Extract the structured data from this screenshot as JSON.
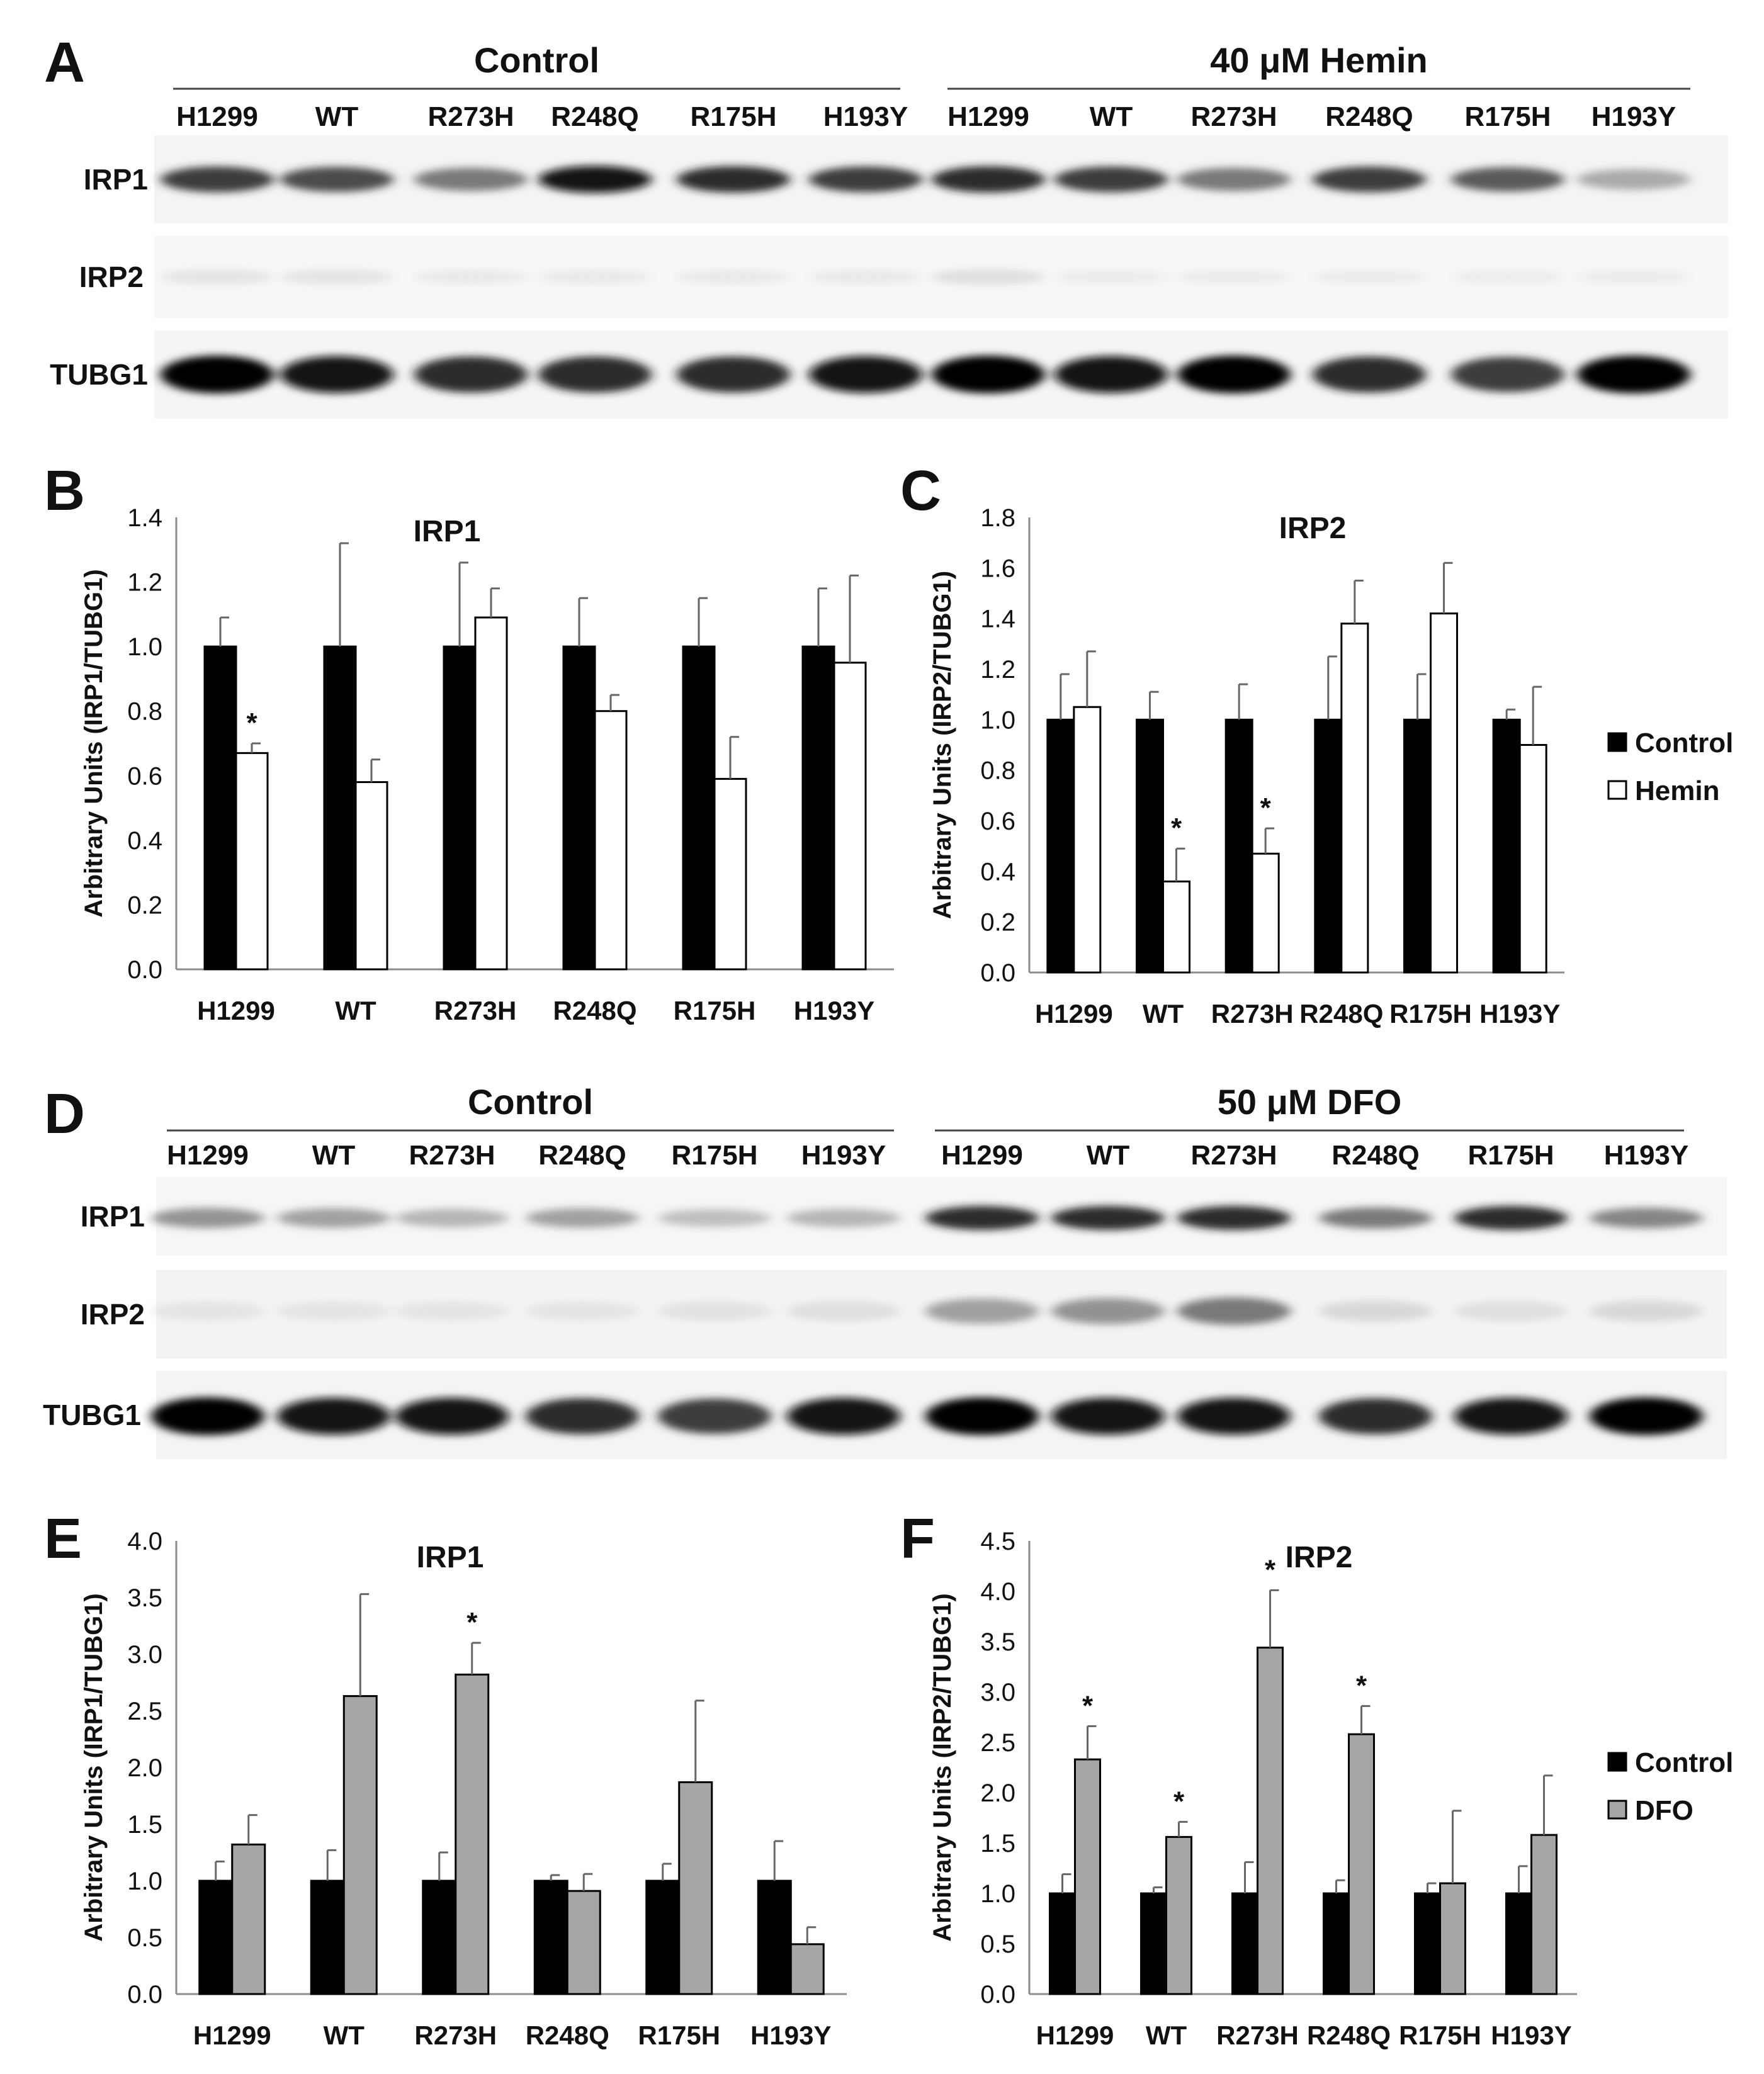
{
  "panel_letters": [
    "A",
    "B",
    "C",
    "D",
    "E",
    "F"
  ],
  "blot_A": {
    "group_labels": [
      "Control",
      "40 μM Hemin"
    ],
    "lanes": [
      "H1299",
      "WT",
      "R273H",
      "R248Q",
      "R175H",
      "H193Y",
      "H1299",
      "WT",
      "R273H",
      "R248Q",
      "R175H",
      "H193Y"
    ],
    "rows": [
      "IRP1",
      "IRP2",
      "TUBG1"
    ],
    "band_intensity": {
      "IRP1": [
        0.85,
        0.8,
        0.65,
        0.95,
        0.9,
        0.85,
        0.9,
        0.85,
        0.65,
        0.85,
        0.75,
        0.45
      ],
      "IRP2": [
        0.12,
        0.12,
        0.08,
        0.08,
        0.08,
        0.08,
        0.16,
        0.06,
        0.06,
        0.06,
        0.05,
        0.06
      ],
      "TUBG1": [
        1.0,
        0.95,
        0.9,
        0.9,
        0.9,
        0.95,
        1.0,
        0.95,
        1.0,
        0.9,
        0.85,
        1.0
      ]
    }
  },
  "blot_D": {
    "group_labels": [
      "Control",
      "50 μM DFO"
    ],
    "lanes": [
      "H1299",
      "WT",
      "R273H",
      "R248Q",
      "R175H",
      "H193Y",
      "H1299",
      "WT",
      "R273H",
      "R248Q",
      "R175H",
      "H193Y"
    ],
    "rows": [
      "IRP1",
      "IRP2",
      "TUBG1"
    ],
    "band_intensity": {
      "IRP1": [
        0.55,
        0.5,
        0.4,
        0.5,
        0.35,
        0.4,
        0.9,
        0.9,
        0.9,
        0.65,
        0.9,
        0.6
      ],
      "IRP2": [
        0.1,
        0.1,
        0.1,
        0.1,
        0.12,
        0.15,
        0.5,
        0.55,
        0.65,
        0.2,
        0.15,
        0.2
      ],
      "TUBG1": [
        1.0,
        0.95,
        0.95,
        0.9,
        0.85,
        0.95,
        1.0,
        0.95,
        0.95,
        0.9,
        0.95,
        1.0
      ]
    }
  },
  "legend_BC": [
    "Control",
    "Hemin"
  ],
  "legend_EF": [
    "Control",
    "DFO"
  ],
  "colors": {
    "control": "#000000",
    "hemin": "#ffffff",
    "dfo": "#a6a6a6",
    "axis": "#8c8c8c"
  },
  "chart_data": [
    {
      "panel": "B",
      "type": "bar",
      "title": "IRP1",
      "ylabel": "Arbitrary Units (IRP1/TUBG1)",
      "categories": [
        "H1299",
        "WT",
        "R273H",
        "R248Q",
        "R175H",
        "H193Y"
      ],
      "ylim": [
        0,
        1.4
      ],
      "yticks": [
        "0.0",
        "0.2",
        "0.4",
        "0.6",
        "0.8",
        "1.0",
        "1.2",
        "1.4"
      ],
      "series": [
        {
          "name": "Control",
          "values": [
            1.0,
            1.0,
            1.0,
            1.0,
            1.0,
            1.0
          ],
          "errors": [
            0.09,
            0.32,
            0.26,
            0.15,
            0.15,
            0.18
          ]
        },
        {
          "name": "Hemin",
          "values": [
            0.67,
            0.58,
            1.09,
            0.8,
            0.59,
            0.95
          ],
          "errors": [
            0.03,
            0.07,
            0.09,
            0.05,
            0.13,
            0.27
          ]
        }
      ],
      "significance": [
        {
          "category": "H1299",
          "series": "Hemin",
          "mark": "*"
        }
      ]
    },
    {
      "panel": "C",
      "type": "bar",
      "title": "IRP2",
      "ylabel": "Arbitrary Units (IRP2/TUBG1)",
      "categories": [
        "H1299",
        "WT",
        "R273H",
        "R248Q",
        "R175H",
        "H193Y"
      ],
      "ylim": [
        0,
        1.8
      ],
      "yticks": [
        "0.0",
        "0.2",
        "0.4",
        "0.6",
        "0.8",
        "1.0",
        "1.2",
        "1.4",
        "1.6",
        "1.8"
      ],
      "series": [
        {
          "name": "Control",
          "values": [
            1.0,
            1.0,
            1.0,
            1.0,
            1.0,
            1.0
          ],
          "errors": [
            0.18,
            0.11,
            0.14,
            0.25,
            0.18,
            0.04
          ]
        },
        {
          "name": "Hemin",
          "values": [
            1.05,
            0.36,
            0.47,
            1.38,
            1.42,
            0.9
          ],
          "errors": [
            0.22,
            0.13,
            0.1,
            0.17,
            0.2,
            0.23
          ]
        }
      ],
      "significance": [
        {
          "category": "WT",
          "series": "Hemin",
          "mark": "*"
        },
        {
          "category": "R273H",
          "series": "Hemin",
          "mark": "*"
        }
      ]
    },
    {
      "panel": "E",
      "type": "bar",
      "title": "IRP1",
      "ylabel": "Arbitrary Units (IRP1/TUBG1)",
      "categories": [
        "H1299",
        "WT",
        "R273H",
        "R248Q",
        "R175H",
        "H193Y"
      ],
      "ylim": [
        0,
        4.0
      ],
      "yticks": [
        "0.0",
        "0.5",
        "1.0",
        "1.5",
        "2.0",
        "2.5",
        "3.0",
        "3.5",
        "4.0"
      ],
      "series": [
        {
          "name": "Control",
          "values": [
            1.0,
            1.0,
            1.0,
            1.0,
            1.0,
            1.0
          ],
          "errors": [
            0.17,
            0.27,
            0.25,
            0.05,
            0.15,
            0.35
          ]
        },
        {
          "name": "DFO",
          "values": [
            1.32,
            2.63,
            2.82,
            0.91,
            1.87,
            0.44
          ],
          "errors": [
            0.26,
            0.9,
            0.28,
            0.15,
            0.72,
            0.15
          ]
        }
      ],
      "significance": [
        {
          "category": "R273H",
          "series": "DFO",
          "mark": "*"
        }
      ]
    },
    {
      "panel": "F",
      "type": "bar",
      "title": "IRP2",
      "ylabel": "Arbitrary Units (IRP2/TUBG1)",
      "categories": [
        "H1299",
        "WT",
        "R273H",
        "R248Q",
        "R175H",
        "H193Y"
      ],
      "ylim": [
        0,
        4.5
      ],
      "yticks": [
        "0.0",
        "0.5",
        "1.0",
        "1.5",
        "2.0",
        "2.5",
        "3.0",
        "3.5",
        "4.0",
        "4.5"
      ],
      "series": [
        {
          "name": "Control",
          "values": [
            1.0,
            1.0,
            1.0,
            1.0,
            1.0,
            1.0
          ],
          "errors": [
            0.19,
            0.06,
            0.31,
            0.13,
            0.1,
            0.27
          ]
        },
        {
          "name": "DFO",
          "values": [
            2.33,
            1.56,
            3.44,
            2.58,
            1.1,
            1.58
          ],
          "errors": [
            0.33,
            0.15,
            0.57,
            0.28,
            0.72,
            0.59
          ]
        }
      ],
      "significance": [
        {
          "category": "H1299",
          "series": "DFO",
          "mark": "*"
        },
        {
          "category": "WT",
          "series": "DFO",
          "mark": "*"
        },
        {
          "category": "R273H",
          "series": "DFO",
          "mark": "*"
        },
        {
          "category": "R248Q",
          "series": "DFO",
          "mark": "*"
        }
      ]
    }
  ]
}
